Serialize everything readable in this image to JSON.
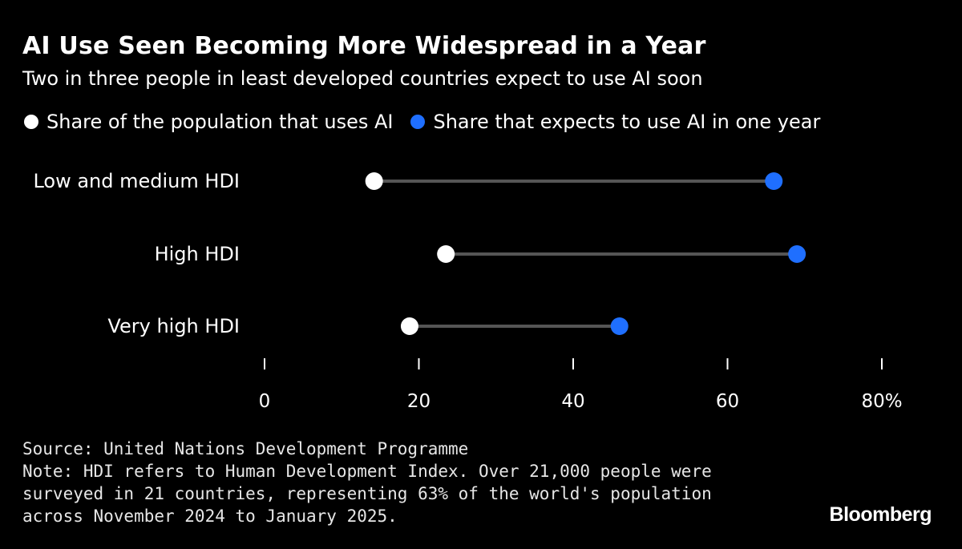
{
  "header": {
    "title": "AI Use Seen Becoming More Widespread in a Year",
    "subtitle": "Two in three people in least developed countries expect to use AI soon"
  },
  "chart_data": {
    "type": "dumbbell",
    "categories": [
      "Low and medium HDI",
      "High HDI",
      "Very high HDI"
    ],
    "series": [
      {
        "name": "Share of the population that uses AI",
        "color": "#ffffff",
        "values": [
          14.2,
          23.5,
          18.8
        ]
      },
      {
        "name": "Share that expects to use AI in one year",
        "color": "#1f6fff",
        "values": [
          66,
          69,
          46
        ]
      }
    ],
    "xlim": [
      0,
      80
    ],
    "x_ticks": [
      0,
      20,
      40,
      60,
      80
    ],
    "x_tick_labels": [
      "0",
      "20",
      "40",
      "60",
      "80%"
    ],
    "connector_color": "#555555",
    "legend_position": "top-left",
    "grid": false
  },
  "footer": {
    "source": "Source: United Nations Development Programme",
    "note_lines": [
      "Note: HDI refers to Human Development Index. Over 21,000 people were",
      "surveyed in 21 countries, representing 63% of the world's population",
      "across November 2024 to January 2025."
    ]
  },
  "brand": {
    "logo_text": "Bloomberg"
  }
}
